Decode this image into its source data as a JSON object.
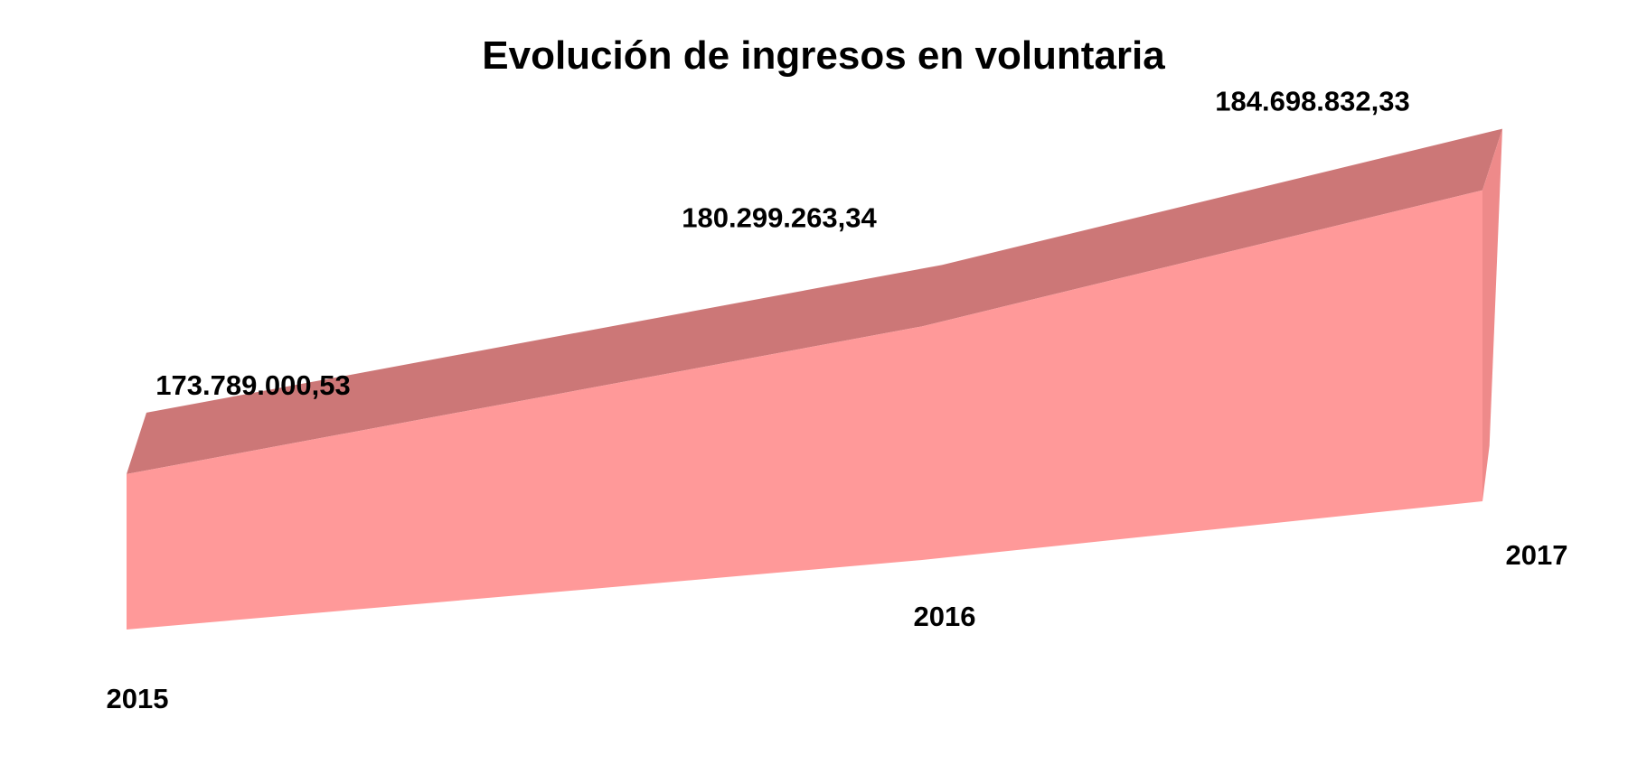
{
  "chart_data": {
    "type": "area",
    "title": "Evolución de ingresos en voluntaria",
    "xlabel": "",
    "ylabel": "",
    "categories": [
      "2015",
      "2016",
      "2017"
    ],
    "values": [
      173789000.53,
      180299263.34,
      184698832.33
    ],
    "data_labels": [
      "173.789.000,53",
      "180.299.263,34",
      "184.698.832,33"
    ],
    "ylim": [
      158000000,
      186500000
    ],
    "grid": false,
    "legend": "none",
    "three_d": true,
    "colors": {
      "front_face": "#ff9999",
      "top_face": "#cc7777",
      "side_face": "#ee8a8a"
    }
  }
}
